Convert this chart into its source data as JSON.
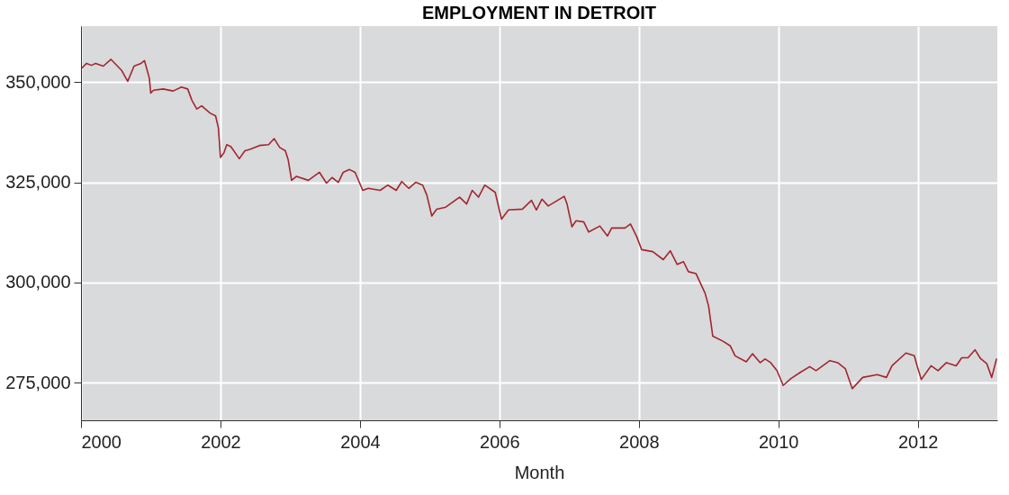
{
  "chart_data": {
    "type": "line",
    "title": "EMPLOYMENT IN DETROIT",
    "xlabel": "Month",
    "x": [
      2000.01,
      2000.08,
      2000.15,
      2000.21,
      2000.32,
      2000.43,
      2000.58,
      2000.67,
      2000.76,
      2000.86,
      2000.91,
      2000.98,
      2001.0,
      2001.04,
      2001.18,
      2001.32,
      2001.44,
      2001.53,
      2001.59,
      2001.66,
      2001.73,
      2001.85,
      2001.93,
      2001.97,
      2002.0,
      2002.05,
      2002.09,
      2002.15,
      2002.27,
      2002.35,
      2002.42,
      2002.56,
      2002.69,
      2002.77,
      2002.85,
      2002.93,
      2002.97,
      2003.02,
      2003.09,
      2003.26,
      2003.42,
      2003.52,
      2003.6,
      2003.69,
      2003.76,
      2003.85,
      2003.93,
      2004.04,
      2004.12,
      2004.29,
      2004.4,
      2004.52,
      2004.6,
      2004.7,
      2004.8,
      2004.9,
      2004.96,
      2005.03,
      2005.1,
      2005.23,
      2005.43,
      2005.53,
      2005.61,
      2005.7,
      2005.79,
      2005.94,
      2006.03,
      2006.13,
      2006.33,
      2006.46,
      2006.53,
      2006.61,
      2006.7,
      2006.93,
      2006.97,
      2007.04,
      2007.1,
      2007.21,
      2007.28,
      2007.44,
      2007.55,
      2007.61,
      2007.8,
      2007.88,
      2007.97,
      2008.04,
      2008.2,
      2008.35,
      2008.45,
      2008.55,
      2008.64,
      2008.71,
      2008.82,
      2008.95,
      2009.0,
      2009.06,
      2009.2,
      2009.31,
      2009.38,
      2009.54,
      2009.63,
      2009.74,
      2009.81,
      2009.89,
      2009.98,
      2010.07,
      2010.18,
      2010.31,
      2010.45,
      2010.54,
      2010.74,
      2010.85,
      2010.96,
      2011.06,
      2011.21,
      2011.42,
      2011.55,
      2011.63,
      2011.83,
      2011.95,
      2011.99,
      2012.05,
      2012.19,
      2012.29,
      2012.41,
      2012.55,
      2012.63,
      2012.72,
      2012.82,
      2012.9,
      2012.99,
      2013.06,
      2013.13
    ],
    "series": [
      {
        "color": "#a3262e",
        "values": [
          353500,
          354700,
          354200,
          354700,
          354000,
          355700,
          353000,
          350200,
          354000,
          354700,
          355400,
          351000,
          347300,
          348000,
          348300,
          347800,
          348800,
          348300,
          345500,
          343300,
          344100,
          342300,
          341600,
          338600,
          331200,
          332400,
          334400,
          333900,
          330900,
          332900,
          333200,
          334200,
          334400,
          335900,
          333700,
          332900,
          330700,
          325500,
          326500,
          325500,
          327500,
          324800,
          326200,
          325000,
          327500,
          328200,
          327500,
          323000,
          323500,
          323000,
          324300,
          323000,
          325200,
          323500,
          325000,
          324300,
          321800,
          316600,
          318300,
          318800,
          321300,
          319600,
          323000,
          321300,
          324300,
          322500,
          315800,
          318100,
          318300,
          320500,
          318100,
          320800,
          319100,
          321500,
          319600,
          313900,
          315400,
          315100,
          312600,
          314100,
          311600,
          313600,
          313600,
          314600,
          311400,
          308200,
          307700,
          305700,
          307900,
          304500,
          305200,
          302700,
          302200,
          297300,
          294100,
          286600,
          285400,
          284200,
          281700,
          280200,
          282200,
          280000,
          280900,
          280000,
          278000,
          274300,
          276000,
          277500,
          279000,
          278000,
          280500,
          280000,
          278500,
          273500,
          276300,
          277000,
          276300,
          279200,
          282400,
          281700,
          279200,
          275800,
          279200,
          278000,
          280000,
          279200,
          281200,
          281200,
          283200,
          281000,
          279700,
          276300,
          281000
        ]
      }
    ],
    "xlim": [
      2000,
      2013.14
    ],
    "ylim": [
      265600,
      364000
    ],
    "xticks": [
      2000,
      2002,
      2004,
      2006,
      2008,
      2010,
      2012
    ],
    "yticks": [
      {
        "value": 275000,
        "label": "275,000"
      },
      {
        "value": 300000,
        "label": "300,000"
      },
      {
        "value": 325000,
        "label": "325,000"
      },
      {
        "value": 350000,
        "label": "350,000"
      }
    ],
    "grid": true,
    "marker": "none",
    "line_style": "solid"
  }
}
